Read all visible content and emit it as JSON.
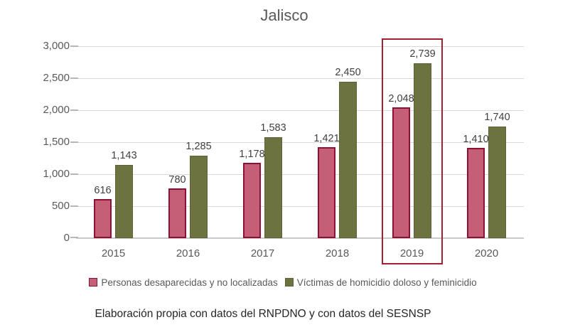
{
  "figure": {
    "caption": "Elaboración propia con datos del RNPDNO y con datos del SESNSP"
  },
  "chart_data": {
    "type": "bar",
    "title": "Jalisco",
    "categories": [
      "2015",
      "2016",
      "2017",
      "2018",
      "2019",
      "2020"
    ],
    "series": [
      {
        "key": "desaparecidas",
        "name": "Personas desaparecidas y no localizadas",
        "values": [
          616,
          780,
          1178,
          1421,
          2048,
          1410
        ],
        "labels": [
          "616",
          "780",
          "1,178",
          "1,421",
          "2,048",
          "1,410"
        ],
        "fill": "#c55f77",
        "border": "#8e1034"
      },
      {
        "key": "homicidios",
        "name": "Víctimas de homicidio doloso y feminicidio",
        "values": [
          1143,
          1285,
          1583,
          2450,
          2739,
          1740
        ],
        "labels": [
          "1,143",
          "1,285",
          "1,583",
          "2,450",
          "2,739",
          "1,740"
        ],
        "fill": "#6d7340",
        "border": "#5c6234"
      }
    ],
    "ylim": [
      0,
      3000
    ],
    "ytick_step": 500,
    "ytick_labels": [
      "0",
      "500",
      "1,000",
      "1,500",
      "2,000",
      "2,500",
      "3,000"
    ],
    "grid": true,
    "legend_position": "bottom",
    "annotation": {
      "type": "highlight-box",
      "category": "2019",
      "color": "#a32133"
    },
    "colors": {
      "gridline": "#d9d9d9",
      "axis_line": "#c9c9c9",
      "axis_text": "#595959",
      "data_label_text": "#404040",
      "caption_text": "#262626"
    }
  }
}
